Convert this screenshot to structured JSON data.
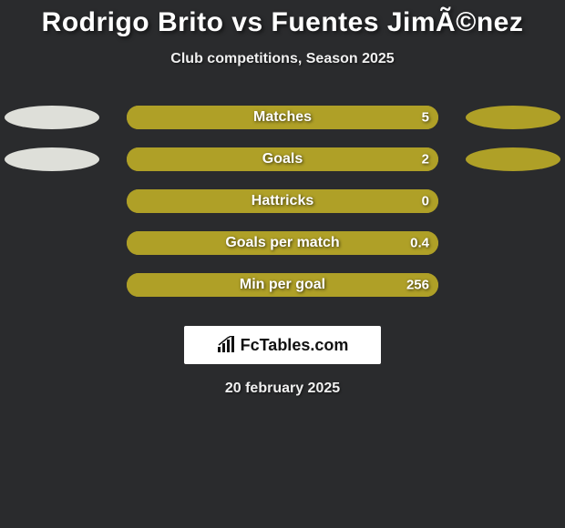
{
  "title": "Rodrigo Brito vs Fuentes JimÃ©nez",
  "subtitle": "Club competitions, Season 2025",
  "date": "20 february 2025",
  "logo_text": "FcTables.com",
  "colors": {
    "background": "#2a2b2d",
    "player1": "#dedfd9",
    "player2": "#afa027",
    "text": "#ffffff"
  },
  "ellipses": {
    "show_on_rows": [
      0,
      1
    ],
    "width": 104,
    "height": 26
  },
  "bar": {
    "track_width": 342,
    "track_height": 26,
    "track_radius": 14
  },
  "stats": [
    {
      "label": "Matches",
      "left_pct": 0,
      "right_pct": 100,
      "right_value": "5",
      "left_color": "#dedfd9",
      "right_color": "#afa027"
    },
    {
      "label": "Goals",
      "left_pct": 0,
      "right_pct": 100,
      "right_value": "2",
      "left_color": "#dedfd9",
      "right_color": "#afa027"
    },
    {
      "label": "Hattricks",
      "left_pct": 0,
      "right_pct": 100,
      "right_value": "0",
      "left_color": "#dedfd9",
      "right_color": "#afa027"
    },
    {
      "label": "Goals per match",
      "left_pct": 0,
      "right_pct": 100,
      "right_value": "0.4",
      "left_color": "#dedfd9",
      "right_color": "#afa027"
    },
    {
      "label": "Min per goal",
      "left_pct": 0,
      "right_pct": 100,
      "right_value": "256",
      "left_color": "#dedfd9",
      "right_color": "#afa027"
    }
  ]
}
